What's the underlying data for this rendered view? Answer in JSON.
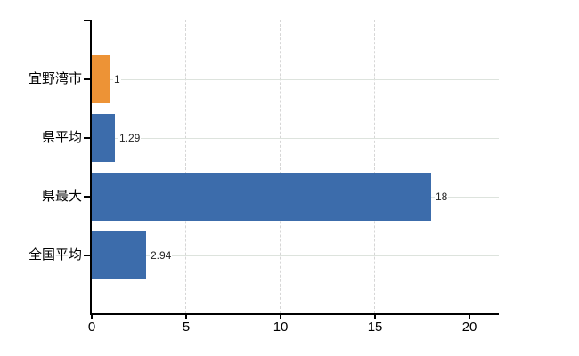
{
  "chart_data": {
    "type": "bar",
    "orientation": "horizontal",
    "title": "",
    "xlabel": "",
    "ylabel": "",
    "categories": [
      "宜野湾市",
      "県平均",
      "県最大",
      "全国平均"
    ],
    "values": [
      1,
      1.29,
      18,
      2.94
    ],
    "value_labels": [
      "1",
      "1.29",
      "18",
      "2.94"
    ],
    "bar_colors": [
      "#ED9336",
      "#3C6CAB",
      "#3C6CAB",
      "#3C6CAB"
    ],
    "x_tick_values": [
      0,
      5,
      10,
      15,
      20
    ],
    "x_tick_labels": [
      "0",
      "5",
      "10",
      "15",
      "20"
    ],
    "xlim": [
      0,
      21.6
    ],
    "grid": true,
    "legend": false
  },
  "colors": {
    "highlight_bar": "#ED9336",
    "default_bar": "#3C6CAB",
    "axis": "#000000",
    "vertical_grid": "#d6d6d6",
    "horizontal_grid": "#dde3dd",
    "top_border": "#c8c8c8",
    "background": "#ffffff",
    "text": "#000000",
    "value_text": "#222222"
  }
}
